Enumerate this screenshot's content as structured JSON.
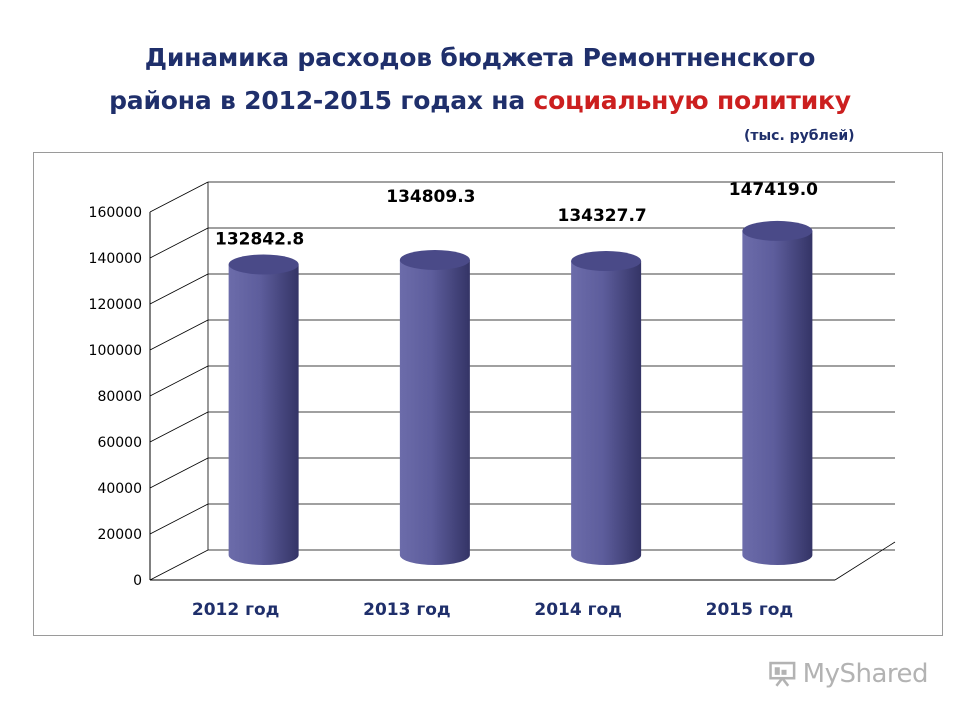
{
  "title": {
    "line1": "Динамика расходов бюджета Ремонтненского",
    "line2_start": "района в  2012-2015 годах на ",
    "line2_highlight": "социальную политику"
  },
  "unit_label": "(тыс. рублей)",
  "logo": {
    "text": "MyShared",
    "icon": "presentation-board-icon"
  },
  "colors": {
    "title": "#1f2f6b",
    "highlight": "#cc1f1f",
    "bar": "#5b5b9a",
    "category_label": "#1f2f6b"
  },
  "chart_data": {
    "type": "bar",
    "style": "3d-cylinder",
    "categories": [
      "2012 год",
      "2013 год",
      "2014 год",
      "2015 год"
    ],
    "values": [
      132842.8,
      134809.3,
      134327.7,
      147419.0
    ],
    "value_labels": [
      "132842.8",
      "134809.3",
      "134327.7",
      "147419.0"
    ],
    "ylim": [
      0,
      160000
    ],
    "yticks": [
      "0",
      "20000",
      "40000",
      "60000",
      "80000",
      "100000",
      "120000",
      "140000",
      "160000"
    ],
    "grid": true,
    "legend": "none"
  }
}
